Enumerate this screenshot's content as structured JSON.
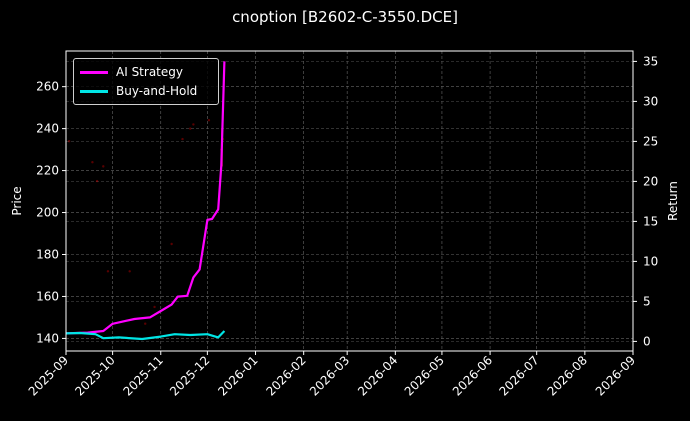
{
  "chart_data": {
    "type": "line",
    "title": "cnoption [B2602-C-3550.DCE]",
    "xlabel": "",
    "ylabel": "Price",
    "y2label": "Return",
    "x_tick_labels": [
      "2025-09",
      "2025-10",
      "2025-11",
      "2025-12",
      "2026-01",
      "2026-02",
      "2026-03",
      "2026-04",
      "2026-05",
      "2026-06",
      "2026-07",
      "2026-08",
      "2026-09"
    ],
    "y_ticks": [
      140,
      160,
      180,
      200,
      220,
      240,
      260
    ],
    "y2_ticks": [
      0,
      5,
      10,
      15,
      20,
      25,
      30,
      35
    ],
    "ylim": [
      134,
      277
    ],
    "y2lim": [
      -1.2,
      36.3
    ],
    "grid": true,
    "legend_position": "upper left",
    "series": [
      {
        "name": "AI Strategy",
        "axis": "right",
        "color": "#ff00ff",
        "x": [
          "2025-09-01",
          "2025-09-15",
          "2025-09-25",
          "2025-10-01",
          "2025-10-15",
          "2025-10-25",
          "2025-11-01",
          "2025-11-08",
          "2025-11-12",
          "2025-11-18",
          "2025-11-22",
          "2025-11-26",
          "2025-12-01",
          "2025-12-04",
          "2025-12-08",
          "2025-12-10",
          "2025-12-12"
        ],
        "values": [
          1.0,
          1.1,
          1.3,
          2.2,
          2.8,
          3.0,
          3.8,
          4.6,
          5.6,
          5.7,
          8.0,
          9.0,
          15.2,
          15.3,
          16.5,
          22.0,
          35.0
        ]
      },
      {
        "name": "Buy-and-Hold",
        "axis": "right",
        "color": "#00e5e5",
        "x": [
          "2025-09-01",
          "2025-09-10",
          "2025-09-20",
          "2025-09-25",
          "2025-10-05",
          "2025-10-20",
          "2025-11-01",
          "2025-11-10",
          "2025-11-20",
          "2025-12-01",
          "2025-12-08",
          "2025-12-12"
        ],
        "values": [
          1.0,
          1.05,
          0.9,
          0.4,
          0.5,
          0.3,
          0.6,
          0.9,
          0.8,
          0.9,
          0.5,
          1.3
        ]
      },
      {
        "name": "Price",
        "axis": "left",
        "color": "#ff0000",
        "style": "scatter-faint",
        "x": [
          "2025-09-03",
          "2025-09-18",
          "2025-09-21",
          "2025-09-25",
          "2025-09-28",
          "2025-10-12",
          "2025-10-22",
          "2025-10-28",
          "2025-11-08",
          "2025-11-15",
          "2025-11-20",
          "2025-11-22",
          "2025-12-02",
          "2025-12-10",
          "2025-12-11"
        ],
        "values": [
          234,
          224,
          215,
          222,
          172,
          172,
          147,
          155,
          185,
          235,
          240,
          242,
          244,
          230,
          235
        ]
      }
    ]
  },
  "legend": {
    "items": [
      {
        "label": "AI Strategy",
        "color": "#ff00ff"
      },
      {
        "label": "Buy-and-Hold",
        "color": "#00e5e5"
      }
    ]
  }
}
